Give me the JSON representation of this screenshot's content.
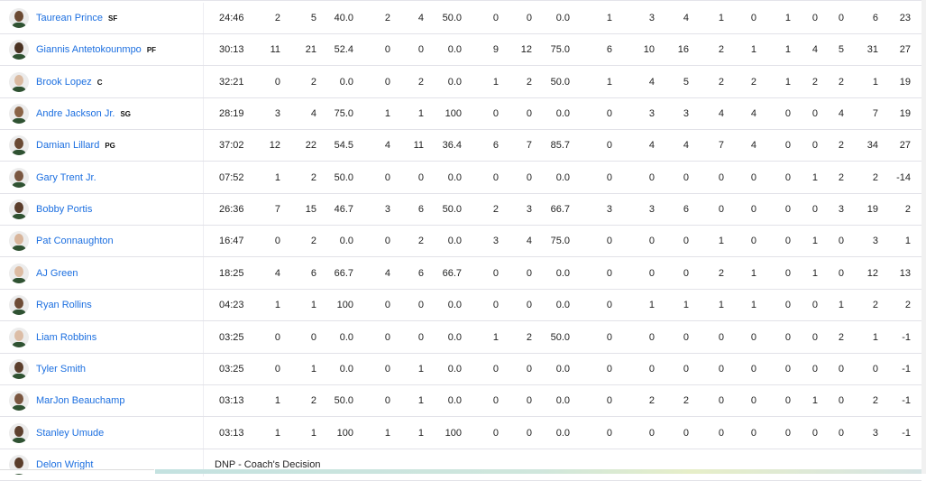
{
  "players": [
    {
      "name": "Taurean Prince",
      "pos": "SF",
      "tone": "#6b4a33",
      "min": "24:46",
      "stats": [
        "2",
        "5",
        "40.0",
        "2",
        "4",
        "50.0",
        "0",
        "0",
        "0.0",
        "1",
        "3",
        "4",
        "1",
        "0",
        "1",
        "0",
        "0",
        "6",
        "23"
      ]
    },
    {
      "name": "Giannis Antetokounmpo",
      "pos": "PF",
      "tone": "#4a3222",
      "min": "30:13",
      "stats": [
        "11",
        "21",
        "52.4",
        "0",
        "0",
        "0.0",
        "9",
        "12",
        "75.0",
        "6",
        "10",
        "16",
        "2",
        "1",
        "1",
        "4",
        "5",
        "31",
        "27"
      ]
    },
    {
      "name": "Brook Lopez",
      "pos": "C",
      "tone": "#d9b9a0",
      "min": "32:21",
      "stats": [
        "0",
        "2",
        "0.0",
        "0",
        "2",
        "0.0",
        "1",
        "2",
        "50.0",
        "1",
        "4",
        "5",
        "2",
        "2",
        "1",
        "2",
        "2",
        "1",
        "19"
      ]
    },
    {
      "name": "Andre Jackson Jr.",
      "pos": "SG",
      "tone": "#8a6447",
      "min": "28:19",
      "stats": [
        "3",
        "4",
        "75.0",
        "1",
        "1",
        "100",
        "0",
        "0",
        "0.0",
        "0",
        "3",
        "3",
        "4",
        "4",
        "0",
        "0",
        "4",
        "7",
        "19"
      ]
    },
    {
      "name": "Damian Lillard",
      "pos": "PG",
      "tone": "#6a4a34",
      "min": "37:02",
      "stats": [
        "12",
        "22",
        "54.5",
        "4",
        "11",
        "36.4",
        "6",
        "7",
        "85.7",
        "0",
        "4",
        "4",
        "7",
        "4",
        "0",
        "0",
        "2",
        "34",
        "27"
      ]
    },
    {
      "name": "Gary Trent Jr.",
      "pos": "",
      "tone": "#7a5741",
      "min": "07:52",
      "stats": [
        "1",
        "2",
        "50.0",
        "0",
        "0",
        "0.0",
        "0",
        "0",
        "0.0",
        "0",
        "0",
        "0",
        "0",
        "0",
        "0",
        "1",
        "2",
        "2",
        "-14"
      ]
    },
    {
      "name": "Bobby Portis",
      "pos": "",
      "tone": "#5a3d2b",
      "min": "26:36",
      "stats": [
        "7",
        "15",
        "46.7",
        "3",
        "6",
        "50.0",
        "2",
        "3",
        "66.7",
        "3",
        "3",
        "6",
        "0",
        "0",
        "0",
        "0",
        "3",
        "19",
        "2"
      ]
    },
    {
      "name": "Pat Connaughton",
      "pos": "",
      "tone": "#d8b59b",
      "min": "16:47",
      "stats": [
        "0",
        "2",
        "0.0",
        "0",
        "2",
        "0.0",
        "3",
        "4",
        "75.0",
        "0",
        "0",
        "0",
        "1",
        "0",
        "0",
        "1",
        "0",
        "3",
        "1"
      ]
    },
    {
      "name": "AJ Green",
      "pos": "",
      "tone": "#dcbba2",
      "min": "18:25",
      "stats": [
        "4",
        "6",
        "66.7",
        "4",
        "6",
        "66.7",
        "0",
        "0",
        "0.0",
        "0",
        "0",
        "0",
        "2",
        "1",
        "0",
        "1",
        "0",
        "12",
        "13"
      ]
    },
    {
      "name": "Ryan Rollins",
      "pos": "",
      "tone": "#6e4c36",
      "min": "04:23",
      "stats": [
        "1",
        "1",
        "100",
        "0",
        "0",
        "0.0",
        "0",
        "0",
        "0.0",
        "0",
        "1",
        "1",
        "1",
        "1",
        "0",
        "0",
        "1",
        "2",
        "2"
      ]
    },
    {
      "name": "Liam Robbins",
      "pos": "",
      "tone": "#dcbda6",
      "min": "03:25",
      "stats": [
        "0",
        "0",
        "0.0",
        "0",
        "0",
        "0.0",
        "1",
        "2",
        "50.0",
        "0",
        "0",
        "0",
        "0",
        "0",
        "0",
        "0",
        "2",
        "1",
        "-1"
      ]
    },
    {
      "name": "Tyler Smith",
      "pos": "",
      "tone": "#5b3e2c",
      "min": "03:25",
      "stats": [
        "0",
        "1",
        "0.0",
        "0",
        "1",
        "0.0",
        "0",
        "0",
        "0.0",
        "0",
        "0",
        "0",
        "0",
        "0",
        "0",
        "0",
        "0",
        "0",
        "-1"
      ]
    },
    {
      "name": "MarJon Beauchamp",
      "pos": "",
      "tone": "#7a5640",
      "min": "03:13",
      "stats": [
        "1",
        "2",
        "50.0",
        "0",
        "1",
        "0.0",
        "0",
        "0",
        "0.0",
        "0",
        "2",
        "2",
        "0",
        "0",
        "0",
        "1",
        "0",
        "2",
        "-1"
      ]
    },
    {
      "name": "Stanley Umude",
      "pos": "",
      "tone": "#5d402e",
      "min": "03:13",
      "stats": [
        "1",
        "1",
        "100",
        "1",
        "1",
        "100",
        "0",
        "0",
        "0.0",
        "0",
        "0",
        "0",
        "0",
        "0",
        "0",
        "0",
        "0",
        "3",
        "-1"
      ]
    },
    {
      "name": "Delon Wright",
      "pos": "",
      "tone": "#5a3d2b",
      "dnp": "DNP - Coach's Decision"
    }
  ]
}
